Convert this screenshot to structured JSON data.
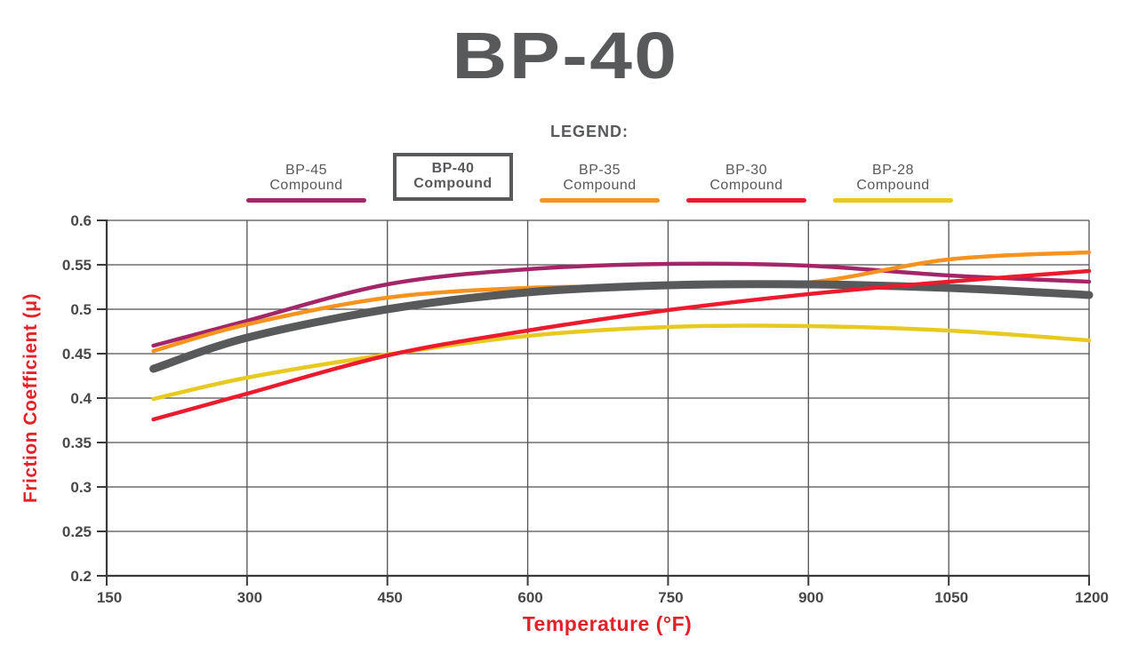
{
  "page": {
    "title": "BP-40",
    "legend_heading": "LEGEND:"
  },
  "legend": {
    "items": [
      {
        "id": "bp-45",
        "label": "BP-45",
        "sublabel": "Compound",
        "color": "#A32768",
        "boxed": false
      },
      {
        "id": "bp-40",
        "label": "BP-40",
        "sublabel": "Compound",
        "color": "#58595B",
        "boxed": true
      },
      {
        "id": "bp-35",
        "label": "BP-35",
        "sublabel": "Compound",
        "color": "#F6921E",
        "boxed": false
      },
      {
        "id": "bp-30",
        "label": "BP-30",
        "sublabel": "Compound",
        "color": "#EB1B2D",
        "boxed": false
      },
      {
        "id": "bp-28",
        "label": "BP-28",
        "sublabel": "Compound",
        "color": "#E7C91F",
        "boxed": false
      }
    ]
  },
  "chart_data": {
    "type": "line",
    "title": "BP-40",
    "xlabel": "Temperature (°F)",
    "ylabel": "Friction Coefficient (μ)",
    "xlim": [
      150,
      1200
    ],
    "ylim": [
      0.2,
      0.6
    ],
    "xticks": [
      150,
      300,
      450,
      600,
      750,
      900,
      1050,
      1200
    ],
    "xtick_labels": [
      "150",
      "300",
      "450",
      "600",
      "750",
      "900",
      "1050",
      "1200"
    ],
    "yticks": [
      0.2,
      0.25,
      0.3,
      0.35,
      0.4,
      0.45,
      0.5,
      0.55,
      0.6
    ],
    "ytick_labels": [
      "0.2",
      "0.25",
      "0.3",
      "0.35",
      "0.4",
      "0.45",
      "0.5",
      "0.55",
      "0.6"
    ],
    "grid": true,
    "legend_position": "top",
    "x": [
      200,
      300,
      450,
      600,
      750,
      900,
      1050,
      1200
    ],
    "series": [
      {
        "name": "BP-45 Compound",
        "color": "#A32768",
        "line_width": 4.5,
        "values": [
          0.459,
          0.487,
          0.528,
          0.545,
          0.551,
          0.549,
          0.538,
          0.531
        ]
      },
      {
        "name": "BP-35 Compound",
        "color": "#F6921E",
        "line_width": 4.5,
        "values": [
          0.453,
          0.483,
          0.513,
          0.524,
          0.526,
          0.53,
          0.556,
          0.564
        ]
      },
      {
        "name": "BP-40 Compound",
        "color": "#58595B",
        "line_width": 9,
        "values": [
          0.433,
          0.468,
          0.5,
          0.519,
          0.527,
          0.528,
          0.524,
          0.516
        ]
      },
      {
        "name": "BP-28 Compound",
        "color": "#E7C91F",
        "line_width": 4.5,
        "values": [
          0.399,
          0.423,
          0.449,
          0.47,
          0.48,
          0.481,
          0.476,
          0.465
        ]
      },
      {
        "name": "BP-30 Compound",
        "color": "#EB1B2D",
        "line_width": 4.5,
        "values": [
          0.376,
          0.405,
          0.448,
          0.476,
          0.499,
          0.517,
          0.531,
          0.543
        ]
      }
    ]
  },
  "colors": {
    "title_text": "#58595B",
    "legend_text": "#58595B",
    "axis_label_text": "#E22229",
    "tick_text": "#48484A",
    "grid": "#515153",
    "axis": "#3A3A3C",
    "background": "#FFFFFF"
  }
}
